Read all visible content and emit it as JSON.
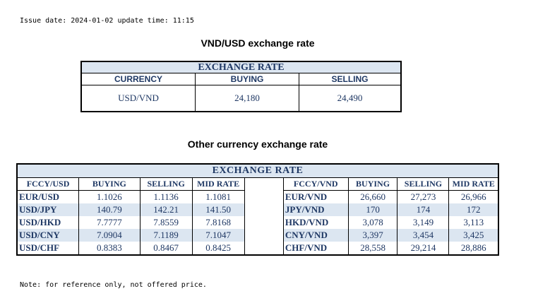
{
  "issue_line": "Issue date: 2024-01-02 update time: 11:15",
  "vnd_usd": {
    "title": "VND/USD exchange rate",
    "band": "EXCHANGE RATE",
    "headers": [
      "CURRENCY",
      "BUYING",
      "SELLING"
    ],
    "row": [
      "USD/VND",
      "24,180",
      "24,490"
    ]
  },
  "other": {
    "title": "Other currency exchange rate",
    "band": "EXCHANGE RATE",
    "left_headers": [
      "FCCY/USD",
      "BUYING",
      "SELLING",
      "MID RATE"
    ],
    "right_headers": [
      "FCCY/VND",
      "BUYING",
      "SELLING",
      "MID RATE"
    ],
    "rows": [
      {
        "l": [
          "EUR/USD",
          "1.1026",
          "1.1136",
          "1.1081"
        ],
        "r": [
          "EUR/VND",
          "26,660",
          "27,273",
          "26,966"
        ]
      },
      {
        "l": [
          "USD/JPY",
          "140.79",
          "142.21",
          "141.50"
        ],
        "r": [
          "JPY/VND",
          "170",
          "174",
          "172"
        ]
      },
      {
        "l": [
          "USD/HKD",
          "7.7777",
          "7.8559",
          "7.8168"
        ],
        "r": [
          "HKD/VND",
          "3,078",
          "3,149",
          "3,113"
        ]
      },
      {
        "l": [
          "USD/CNY",
          "7.0904",
          "7.1189",
          "7.1047"
        ],
        "r": [
          "CNY/VND",
          "3,397",
          "3,454",
          "3,425"
        ]
      },
      {
        "l": [
          "USD/CHF",
          "0.8383",
          "0.8467",
          "0.8425"
        ],
        "r": [
          "CHF/VND",
          "28,558",
          "29,214",
          "28,886"
        ]
      }
    ]
  },
  "note": "Note: for reference only, not offered price."
}
